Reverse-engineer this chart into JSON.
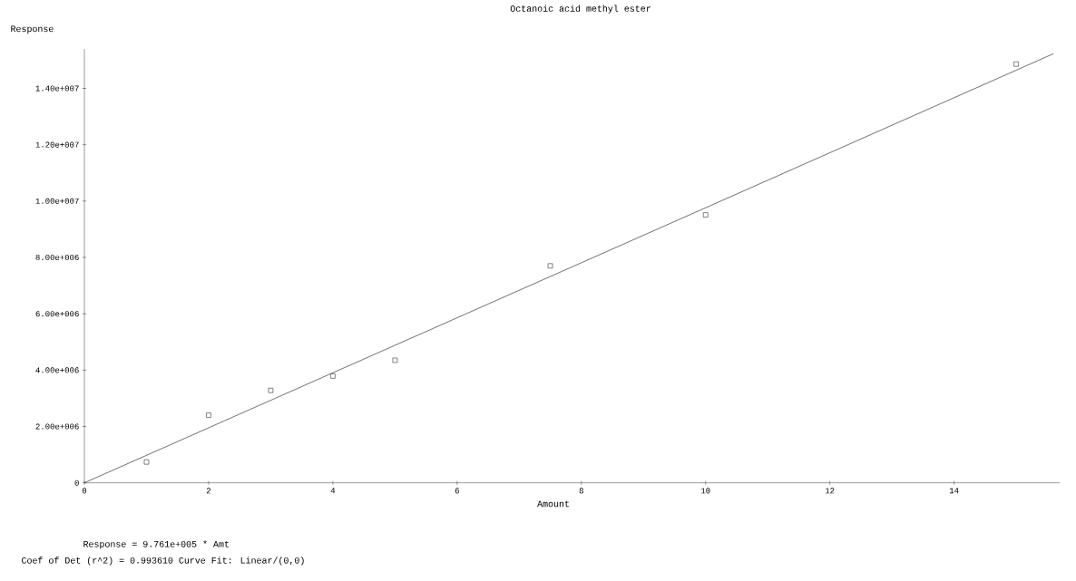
{
  "chart_data": {
    "type": "scatter",
    "title": "Octanoic acid methyl ester",
    "xlabel": "Amount",
    "ylabel": "Response",
    "xlim": [
      0,
      15.7
    ],
    "ylim": [
      0,
      15400000
    ],
    "xticks": [
      0,
      2,
      4,
      6,
      8,
      10,
      12,
      14
    ],
    "yticks": [
      {
        "value": 0,
        "label": "0"
      },
      {
        "value": 2000000,
        "label": "2.00e+006"
      },
      {
        "value": 4000000,
        "label": "4.00e+006"
      },
      {
        "value": 6000000,
        "label": "6.00e+006"
      },
      {
        "value": 8000000,
        "label": "8.00e+006"
      },
      {
        "value": 10000000,
        "label": "1.00e+007"
      },
      {
        "value": 12000000,
        "label": "1.20e+007"
      },
      {
        "value": 14000000,
        "label": "1.40e+007"
      }
    ],
    "marker": "square",
    "series": [
      {
        "type": "scatter",
        "color": "#333333",
        "x": [
          1,
          2,
          3,
          4,
          5,
          7.5,
          10,
          15
        ],
        "values": [
          740000,
          2400000,
          3280000,
          3790000,
          4350000,
          7700000,
          9510000,
          14860000
        ]
      },
      {
        "type": "line",
        "color": "#333333",
        "line_style": "solid",
        "marker": "none",
        "x": [
          0,
          15.6
        ],
        "values": [
          0,
          15230000
        ]
      }
    ],
    "annotations": [
      "Response = 9.761e+005 * Amt",
      "Coef of Det (r^2) = 0.993610    Curve Fit: Linear/(0,0)"
    ]
  }
}
